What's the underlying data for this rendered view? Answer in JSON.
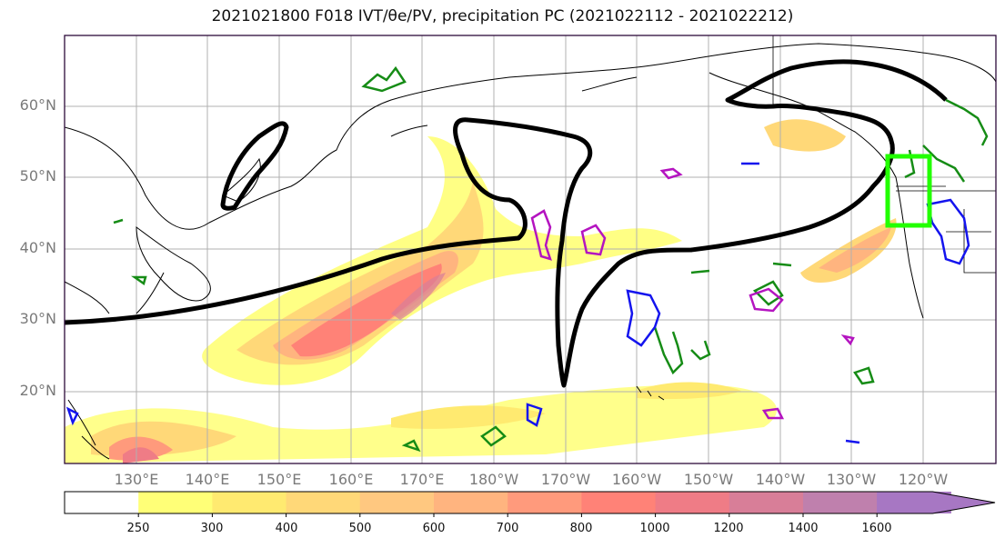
{
  "title": "2021021800 F018 IVT/θe/PV, precipitation PC (2021022112 - 2021022212)",
  "lat_labels": [
    "60°N",
    "50°N",
    "40°N",
    "30°N",
    "20°N"
  ],
  "lon_labels": [
    "130°E",
    "140°E",
    "150°E",
    "160°E",
    "170°E",
    "180°W",
    "170°W",
    "160°W",
    "150°W",
    "140°W",
    "130°W",
    "120°W"
  ],
  "colorbar": {
    "ticks": [
      "250",
      "300",
      "400",
      "500",
      "600",
      "700",
      "800",
      "1000",
      "1200",
      "1400",
      "1600"
    ],
    "colors": [
      "#ffffff",
      "#ffff77",
      "#ffea70",
      "#ffd878",
      "#ffc880",
      "#ffb47f",
      "#ff9a7c",
      "#ff8277",
      "#ef7c86",
      "#d87e98",
      "#bf80ad",
      "#a777c3"
    ]
  },
  "legend_colors": {
    "pv_contour": "#000000",
    "positive_contour": "#168c16",
    "negative_contour": "#1414ee",
    "theta_contour": "#b414c0",
    "target_box": "#22ff00"
  }
}
